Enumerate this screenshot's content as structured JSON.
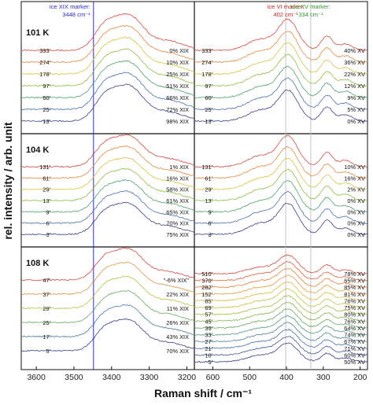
{
  "chart_data": {
    "type": "line",
    "xlabel": "Raman shift / cm⁻¹",
    "ylabel": "rel. intensity / arb. unit",
    "colors": {
      "marker_xix": "#2b2bd6",
      "marker_vi": "#d62020",
      "marker_xv": "#2d9a2d",
      "marker_line_grey": "#bdbdbd"
    },
    "left_axis": {
      "ticks": [
        "3600",
        "3500",
        "3400",
        "3300",
        "3200"
      ],
      "xlim": [
        3640,
        3180
      ]
    },
    "right_axis": {
      "ticks": [
        "600",
        "500",
        "400",
        "300",
        "200"
      ],
      "xlim": [
        650,
        180
      ]
    },
    "markers": [
      {
        "label": "ice XIX marker:",
        "value_text": "3448 cm⁻¹",
        "x": 3448,
        "panel": "left",
        "color_key": "marker_xix"
      },
      {
        "label": "ice VI marker:",
        "value_text": "402 cm⁻¹",
        "x": 402,
        "panel": "right",
        "color_key": "marker_vi"
      },
      {
        "label": "ice XV marker:",
        "value_text": "334 cm⁻¹",
        "x": 334,
        "panel": "right",
        "color_key": "marker_xv"
      }
    ],
    "rows": [
      {
        "temperature": "101 K",
        "times": [
          "333'",
          "274'",
          "178'",
          "97'",
          "60'",
          "25'",
          "13'"
        ],
        "oh_labels": [
          "0% XIX",
          "10% XIX",
          "25% XIX",
          "51% XIX",
          "66% XIX",
          "72% XIX",
          "98% XIX"
        ],
        "lattice_labels": [
          "40% XV",
          "36% XV",
          "22% XV",
          "12% XV",
          "9% XV",
          "5% XV",
          "0% XV"
        ]
      },
      {
        "temperature": "104 K",
        "times": [
          "131'",
          "61'",
          "29'",
          "13'",
          "9'",
          "6'",
          "3'"
        ],
        "oh_labels": [
          "1% XIX",
          "16% XIX",
          "58% XIX",
          "61% XIX",
          "65% XIX",
          "70% XIX",
          "75% XIX"
        ],
        "lattice_labels": [
          "10% XV",
          "16% XV",
          "2% XV",
          "0% XV",
          "0% XV",
          "0% XV",
          "0% XV"
        ]
      },
      {
        "temperature": "108 K",
        "times": [
          "47'",
          "37'",
          "29'",
          "25'",
          "17'",
          "5'"
        ],
        "oh_labels": [
          "\"-6% XIX\"",
          "22% XIX",
          "11% XIX",
          "26% XIX",
          "43% XIX",
          "70% XIX"
        ],
        "lattice_times": [
          "510'",
          "370'",
          "282'",
          "152'",
          "85'",
          "69'",
          "57'",
          "45'",
          "39'",
          "33'",
          "27'",
          "21'",
          "10'",
          "5'"
        ],
        "lattice_labels": [
          "78% XV",
          "65% XV",
          "85% XV",
          "81% XV",
          "76% XV",
          "75% XV",
          "80% XV",
          "76% XV",
          "64% XV",
          "74% XV",
          "67% XV",
          "71% XV",
          "60% XV",
          "50% XV"
        ]
      }
    ]
  }
}
